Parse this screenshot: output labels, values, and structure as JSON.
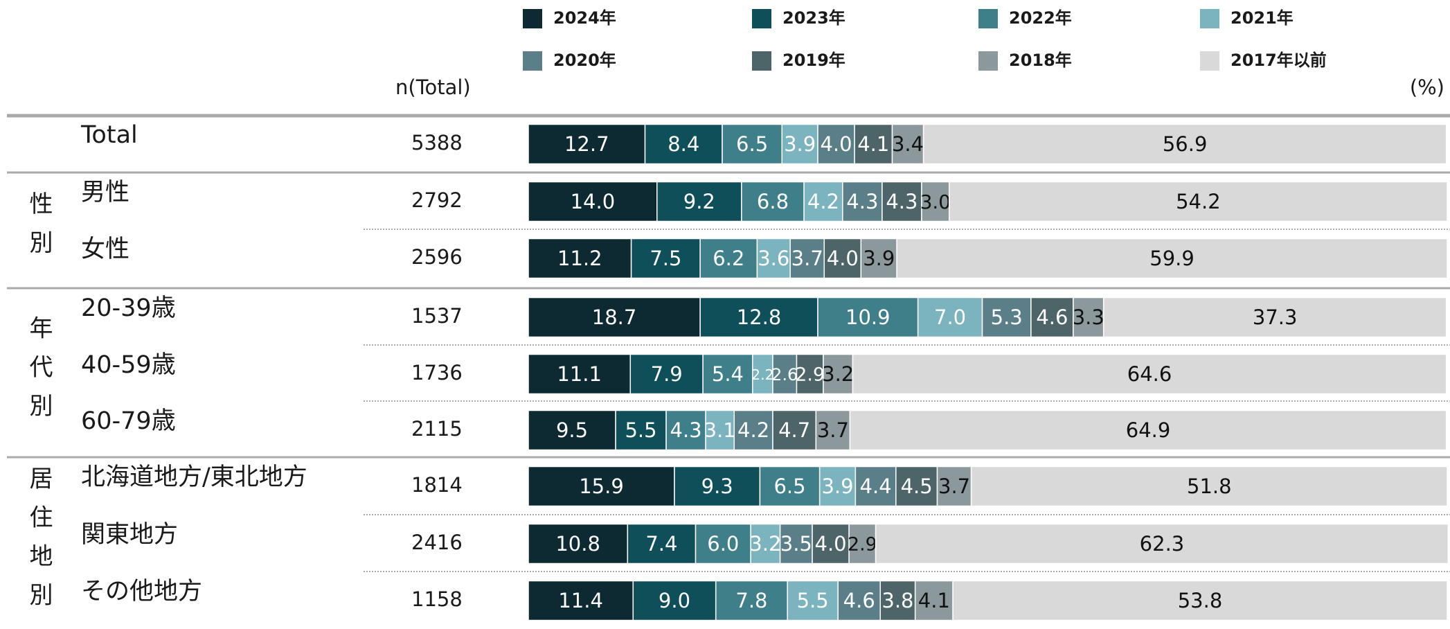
{
  "chart_data": {
    "type": "stacked_bar_horizontal",
    "n_header": "n(Total)",
    "unit_label": "(%)",
    "groups": [
      {
        "label": null,
        "categories": [
          "Total"
        ]
      },
      {
        "label": "性別",
        "categories": [
          "男性",
          "女性"
        ]
      },
      {
        "label": "年代別",
        "categories": [
          "20-39歳",
          "40-59歳",
          "60-79歳"
        ]
      },
      {
        "label": "居住地別",
        "categories": [
          "北海道地方/東北地方",
          "関東地方",
          "その他地方"
        ]
      }
    ],
    "n": [
      5388,
      2792,
      2596,
      1537,
      1736,
      2115,
      1814,
      2416,
      1158
    ],
    "xlim": [
      0,
      100
    ],
    "series": [
      {
        "name": "2024年",
        "color": "#0d2a33",
        "label_color": "#ffffff",
        "values": [
          12.7,
          14.0,
          11.2,
          18.7,
          11.1,
          9.5,
          15.9,
          10.8,
          11.4
        ],
        "value_labels": [
          "12.7",
          "14.0",
          "11.2",
          "18.7",
          "11.1",
          "9.5",
          "15.9",
          "10.8",
          "11.4"
        ]
      },
      {
        "name": "2023年",
        "color": "#0e4f5a",
        "label_color": "#ffffff",
        "values": [
          8.4,
          9.2,
          7.5,
          12.8,
          7.9,
          5.5,
          9.3,
          7.4,
          9.0
        ],
        "value_labels": [
          "8.4",
          "9.2",
          "7.5",
          "12.8",
          "7.9",
          "5.5",
          "9.3",
          "7.4",
          "9.0"
        ]
      },
      {
        "name": "2022年",
        "color": "#3f7f8a",
        "label_color": "#ffffff",
        "values": [
          6.5,
          6.8,
          6.2,
          10.9,
          5.4,
          4.3,
          6.5,
          6.0,
          7.8
        ],
        "value_labels": [
          "6.5",
          "6.8",
          "6.2",
          "10.9",
          "5.4",
          "4.3",
          "6.5",
          "6.0",
          "7.8"
        ]
      },
      {
        "name": "2021年",
        "color": "#7bb3bf",
        "label_color": "#ffffff",
        "values": [
          3.9,
          4.2,
          3.6,
          7.0,
          2.2,
          3.1,
          3.9,
          3.2,
          5.5
        ],
        "value_labels": [
          "3.9",
          "4.2",
          "3.6",
          "7.0",
          "2.2",
          "3.1",
          "3.9",
          "3.2",
          "5.5"
        ]
      },
      {
        "name": "2020年",
        "color": "#5a7f88",
        "label_color": "#ffffff",
        "values": [
          4.0,
          4.3,
          3.7,
          5.3,
          2.6,
          4.2,
          4.4,
          3.5,
          4.6
        ],
        "value_labels": [
          "4.0",
          "4.3",
          "3.7",
          "5.3",
          "2.6",
          "4.2",
          "4.4",
          "3.5",
          "4.6"
        ]
      },
      {
        "name": "2019年",
        "color": "#4d6469",
        "label_color": "#ffffff",
        "values": [
          4.1,
          4.3,
          4.0,
          4.6,
          2.9,
          4.7,
          4.5,
          4.0,
          3.8
        ],
        "value_labels": [
          "4.1",
          "4.3",
          "4.0",
          "4.6",
          "2.9",
          "4.7",
          "4.5",
          "4.0",
          "3.8"
        ]
      },
      {
        "name": "2018年",
        "color": "#8c999c",
        "label_color": "#111111",
        "values": [
          3.4,
          3.0,
          3.9,
          3.3,
          3.2,
          3.7,
          3.7,
          2.9,
          4.1
        ],
        "value_labels": [
          "3.4",
          "3.0",
          "3.9",
          "3.3",
          "3.2",
          "3.7",
          "3.7",
          "2.9",
          "4.1"
        ]
      },
      {
        "name": "2017年以前",
        "color": "#d9d9d9",
        "label_color": "#111111",
        "values": [
          56.9,
          54.2,
          59.9,
          37.3,
          64.6,
          64.9,
          51.8,
          62.3,
          53.8
        ],
        "value_labels": [
          "56.9",
          "54.2",
          "59.9",
          "37.3",
          "64.6",
          "64.9",
          "51.8",
          "62.3",
          "53.8"
        ]
      }
    ]
  }
}
